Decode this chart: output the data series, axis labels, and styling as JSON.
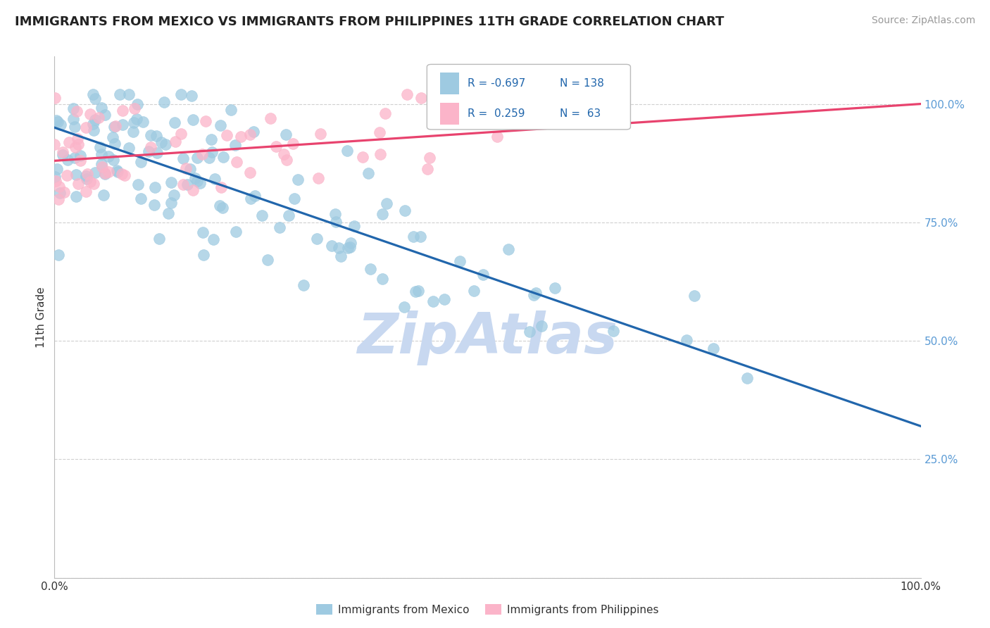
{
  "title": "IMMIGRANTS FROM MEXICO VS IMMIGRANTS FROM PHILIPPINES 11TH GRADE CORRELATION CHART",
  "source": "Source: ZipAtlas.com",
  "ylabel": "11th Grade",
  "blue_color": "#9ecae1",
  "pink_color": "#fbb4c9",
  "blue_line_color": "#2166ac",
  "pink_line_color": "#e8436e",
  "background_color": "#ffffff",
  "grid_color": "#d0d0d0",
  "title_fontsize": 13,
  "source_fontsize": 10,
  "axis_label_fontsize": 11,
  "tick_label_fontsize": 11,
  "watermark_text": "ZipAtlas",
  "watermark_color": "#c8d8f0",
  "blue_trend_x": [
    0.0,
    1.0
  ],
  "blue_trend_y": [
    0.95,
    0.32
  ],
  "pink_trend_x": [
    0.0,
    1.0
  ],
  "pink_trend_y": [
    0.88,
    1.0
  ],
  "ytick_vals": [
    0.0,
    0.25,
    0.5,
    0.75,
    1.0
  ],
  "ytick_labels": [
    "",
    "25.0%",
    "50.0%",
    "75.0%",
    "100.0%"
  ],
  "xtick_vals": [
    0.0,
    1.0
  ],
  "xtick_labels": [
    "0.0%",
    "100.0%"
  ],
  "yaxis_color": "#5b9bd5",
  "xaxis_color": "#333333"
}
